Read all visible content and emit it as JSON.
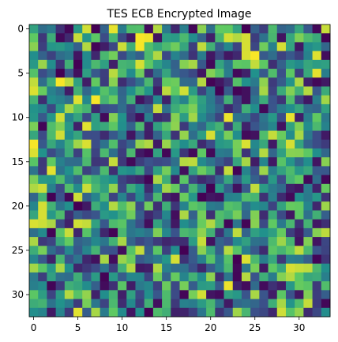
{
  "chart_data": {
    "type": "heatmap",
    "title": "TES ECB Encrypted Image",
    "xlabel": "",
    "ylabel": "",
    "colormap": "viridis",
    "colormap_stops": [
      "#440154",
      "#3b528b",
      "#21918c",
      "#5ec962",
      "#fde725"
    ],
    "value_range": [
      0,
      255
    ],
    "cols": 34,
    "rows": 33,
    "xlim": [
      -0.5,
      33.5
    ],
    "ylim": [
      32.5,
      -0.5
    ],
    "xticks": [
      0,
      5,
      10,
      15,
      20,
      25,
      30
    ],
    "yticks": [
      0,
      5,
      10,
      15,
      20,
      25,
      30
    ],
    "matrix": [
      [
        146,
        91,
        104,
        38,
        5,
        136,
        237,
        0,
        81,
        246,
        105,
        177,
        179,
        9,
        225,
        103,
        30,
        108,
        5,
        209,
        93,
        192,
        191,
        147,
        0,
        79,
        47,
        174,
        81,
        91,
        150,
        70,
        5,
        233
      ],
      [
        191,
        43,
        158,
        7,
        33,
        233,
        132,
        188,
        59,
        167,
        56,
        19,
        253,
        249,
        14,
        140,
        137,
        172,
        123,
        81,
        24,
        168,
        237,
        225,
        238,
        47,
        96,
        170,
        14,
        151,
        204,
        173,
        155,
        1
      ],
      [
        209,
        49,
        133,
        136,
        119,
        78,
        225,
        4,
        23,
        54,
        235,
        161,
        253,
        178,
        151,
        173,
        198,
        150,
        48,
        230,
        162,
        75,
        116,
        53,
        239,
        55,
        198,
        111,
        238,
        147,
        18,
        122,
        134,
        84
      ],
      [
        124,
        80,
        51,
        91,
        102,
        16,
        120,
        30,
        170,
        199,
        57,
        99,
        78,
        173,
        224,
        57,
        113,
        89,
        40,
        106,
        17,
        55,
        17,
        31,
        240,
        253,
        72,
        91,
        51,
        70,
        49,
        112,
        242,
        10
      ],
      [
        136,
        215,
        123,
        40,
        161,
        0,
        121,
        172,
        143,
        24,
        167,
        162,
        239,
        189,
        143,
        116,
        80,
        207,
        220,
        71,
        6,
        147,
        103,
        190,
        187,
        231,
        190,
        36,
        79,
        136,
        120,
        150,
        140,
        143
      ],
      [
        181,
        60,
        86,
        0,
        66,
        12,
        142,
        72,
        49,
        227,
        174,
        122,
        198,
        36,
        90,
        149,
        84,
        70,
        56,
        16,
        206,
        180,
        106,
        7,
        25,
        128,
        71,
        177,
        61,
        189,
        48,
        153,
        245,
        107
      ],
      [
        231,
        91,
        158,
        252,
        230,
        143,
        22,
        193,
        47,
        208,
        35,
        61,
        93,
        171,
        44,
        193,
        197,
        88,
        86,
        226,
        2,
        17,
        40,
        182,
        126,
        104,
        211,
        46,
        73,
        130,
        222,
        25,
        6,
        19
      ],
      [
        241,
        195,
        111,
        92,
        22,
        162,
        84,
        127,
        182,
        151,
        83,
        126,
        168,
        131,
        23,
        229,
        191,
        237,
        139,
        51,
        105,
        1,
        74,
        3,
        12,
        82,
        220,
        52,
        155,
        206,
        162,
        226,
        70,
        156
      ],
      [
        164,
        35,
        122,
        111,
        94,
        242,
        117,
        252,
        166,
        195,
        87,
        161,
        15,
        39,
        119,
        26,
        144,
        113,
        183,
        142,
        104,
        62,
        163,
        53,
        12,
        98,
        157,
        65,
        41,
        176,
        51,
        18,
        107,
        218
      ],
      [
        130,
        116,
        56,
        136,
        220,
        184,
        165,
        32,
        61,
        65,
        91,
        51,
        96,
        80,
        232,
        94,
        158,
        182,
        204,
        137,
        108,
        81,
        31,
        57,
        160,
        124,
        6,
        67,
        105,
        123,
        149,
        90,
        83,
        144
      ],
      [
        133,
        71,
        133,
        237,
        114,
        148,
        57,
        142,
        8,
        206,
        129,
        44,
        10,
        109,
        30,
        39,
        207,
        140,
        218,
        121,
        90,
        52,
        248,
        98,
        93,
        55,
        99,
        135,
        60,
        246,
        23,
        108,
        192,
        103
      ],
      [
        203,
        4,
        178,
        205,
        135,
        25,
        244,
        142,
        154,
        188,
        125,
        81,
        173,
        26,
        145,
        182,
        210,
        45,
        109,
        84,
        142,
        165,
        45,
        157,
        27,
        67,
        93,
        116,
        14,
        145,
        205,
        123,
        172,
        112
      ],
      [
        150,
        58,
        174,
        236,
        124,
        149,
        60,
        60,
        34,
        70,
        104,
        16,
        80,
        22,
        82,
        152,
        39,
        213,
        92,
        141,
        239,
        137,
        202,
        124,
        8,
        13,
        176,
        232,
        196,
        121,
        221,
        103,
        59,
        20
      ],
      [
        252,
        70,
        153,
        114,
        160,
        217,
        240,
        60,
        96,
        178,
        54,
        81,
        212,
        224,
        20,
        214,
        153,
        124,
        154,
        33,
        60,
        136,
        141,
        201,
        240,
        118,
        153,
        20,
        170,
        239,
        148,
        81,
        59,
        46
      ],
      [
        241,
        129,
        58,
        86,
        157,
        50,
        183,
        52,
        172,
        92,
        47,
        172,
        19,
        5,
        146,
        4,
        135,
        41,
        7,
        190,
        6,
        105,
        100,
        199,
        40,
        108,
        225,
        84,
        143,
        208,
        207,
        190,
        124,
        85
      ],
      [
        185,
        43,
        192,
        110,
        91,
        90,
        172,
        42,
        45,
        232,
        44,
        7,
        48,
        64,
        57,
        60,
        94,
        226,
        229,
        120,
        98,
        72,
        51,
        150,
        220,
        21,
        115,
        18,
        184,
        132,
        87,
        124,
        16,
        208
      ],
      [
        98,
        45,
        244,
        97,
        128,
        179,
        51,
        71,
        173,
        36,
        132,
        123,
        152,
        57,
        143,
        200,
        120,
        11,
        146,
        197,
        165,
        33,
        232,
        2,
        114,
        63,
        216,
        107,
        146,
        174,
        136,
        152,
        72,
        70
      ],
      [
        203,
        137,
        133,
        177,
        109,
        79,
        185,
        158,
        137,
        127,
        52,
        38,
        29,
        3,
        222,
        159,
        25,
        187,
        54,
        32,
        44,
        84,
        150,
        73,
        138,
        78,
        52,
        136,
        60,
        167,
        191,
        7,
        90,
        5
      ],
      [
        223,
        235,
        110,
        58,
        178,
        120,
        235,
        171,
        144,
        213,
        56,
        157,
        129,
        33,
        113,
        218,
        194,
        64,
        167,
        107,
        1,
        137,
        78,
        13,
        72,
        231,
        138,
        105,
        88,
        25,
        16,
        105,
        27,
        194
      ],
      [
        84,
        165,
        1,
        64,
        6,
        236,
        82,
        114,
        171,
        52,
        113,
        54,
        120,
        57,
        174,
        29,
        15,
        196,
        133,
        1,
        17,
        12,
        111,
        114,
        179,
        167,
        37,
        109,
        32,
        7,
        125,
        103,
        134,
        38
      ],
      [
        115,
        238,
        164,
        98,
        126,
        0,
        19,
        158,
        123,
        225,
        179,
        211,
        60,
        198,
        36,
        160,
        42,
        113,
        188,
        174,
        105,
        99,
        182,
        174,
        96,
        123,
        116,
        52,
        147,
        194,
        192,
        115,
        29,
        216
      ],
      [
        149,
        239,
        135,
        175,
        36,
        75,
        57,
        67,
        137,
        129,
        154,
        198,
        77,
        31,
        50,
        116,
        10,
        222,
        79,
        200,
        36,
        177,
        162,
        201,
        86,
        205,
        34,
        156,
        58,
        16,
        189,
        95,
        162,
        77
      ],
      [
        240,
        235,
        222,
        57,
        25,
        237,
        232,
        145,
        70,
        175,
        186,
        98,
        62,
        10,
        147,
        93,
        19,
        124,
        101,
        195,
        224,
        172,
        5,
        99,
        3,
        208,
        57,
        191,
        103,
        170,
        39,
        165,
        18,
        36
      ],
      [
        93,
        119,
        2,
        184,
        233,
        29,
        184,
        103,
        29,
        2,
        170,
        100,
        110,
        96,
        204,
        116,
        65,
        172,
        162,
        211,
        162,
        38,
        102,
        230,
        81,
        143,
        127,
        142,
        194,
        49,
        23,
        74,
        207,
        229
      ],
      [
        222,
        44,
        53,
        154,
        193,
        79,
        91,
        118,
        100,
        164,
        221,
        82,
        55,
        67,
        46,
        29,
        36,
        35,
        140,
        233,
        14,
        80,
        64,
        120,
        144,
        95,
        90,
        175,
        216,
        167,
        15,
        205,
        15,
        54
      ],
      [
        158,
        201,
        90,
        61,
        118,
        71,
        114,
        166,
        68,
        64,
        11,
        183,
        232,
        78,
        188,
        50,
        124,
        0,
        74,
        209,
        154,
        78,
        227,
        184,
        107,
        71,
        32,
        187,
        167,
        193,
        230,
        172,
        66,
        52
      ],
      [
        115,
        70,
        25,
        168,
        67,
        98,
        30,
        12,
        221,
        10,
        215,
        196,
        72,
        88,
        104,
        132,
        238,
        39,
        72,
        110,
        184,
        103,
        182,
        0,
        241,
        172,
        107,
        151,
        43,
        109,
        104,
        77,
        4,
        41
      ],
      [
        219,
        185,
        136,
        221,
        125,
        29,
        43,
        58,
        98,
        49,
        163,
        225,
        19,
        23,
        223,
        109,
        91,
        96,
        61,
        29,
        74,
        109,
        172,
        6,
        103,
        201,
        18,
        190,
        153,
        239,
        233,
        229,
        171,
        124
      ],
      [
        104,
        48,
        144,
        94,
        90,
        160,
        72,
        139,
        2,
        136,
        74,
        116,
        115,
        52,
        196,
        82,
        194,
        114,
        163,
        122,
        210,
        35,
        99,
        5,
        226,
        65,
        159,
        105,
        206,
        225,
        191,
        153,
        157,
        109
      ],
      [
        109,
        121,
        4,
        46,
        160,
        150,
        123,
        78,
        9,
        37,
        186,
        22,
        104,
        116,
        50,
        196,
        57,
        201,
        75,
        138,
        141,
        73,
        248,
        27,
        9,
        89,
        9,
        38,
        23,
        135,
        194,
        187,
        44,
        178
      ],
      [
        188,
        141,
        53,
        138,
        225,
        183,
        212,
        26,
        124,
        166,
        24,
        144,
        57,
        125,
        69,
        175,
        58,
        3,
        201,
        238,
        16,
        9,
        144,
        135,
        66,
        221,
        67,
        22,
        188,
        64,
        17,
        205,
        48,
        76
      ],
      [
        158,
        165,
        97,
        129,
        106,
        46,
        201,
        101,
        53,
        172,
        34,
        119,
        48,
        162,
        12,
        173,
        44,
        111,
        106,
        139,
        169,
        93,
        20,
        86,
        93,
        84,
        62,
        159,
        220,
        131,
        178,
        232,
        46,
        5
      ],
      [
        124,
        114,
        19,
        113,
        44,
        244,
        75,
        220,
        105,
        191,
        120,
        16,
        125,
        0,
        177,
        162,
        25,
        27,
        49,
        100,
        175,
        40,
        70,
        217,
        169,
        62,
        55,
        30,
        236,
        184,
        213,
        33,
        55,
        123
      ]
    ]
  }
}
